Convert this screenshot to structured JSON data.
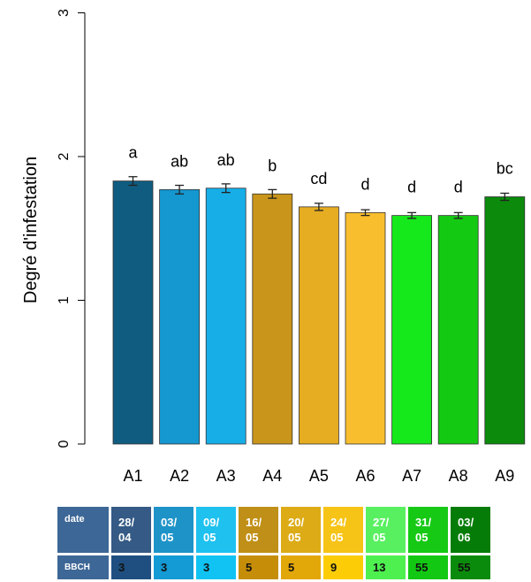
{
  "chart_data": {
    "type": "bar",
    "categories": [
      "A1",
      "A2",
      "A3",
      "A4",
      "A5",
      "A6",
      "A7",
      "A8",
      "A9"
    ],
    "values": [
      1.83,
      1.77,
      1.78,
      1.74,
      1.65,
      1.61,
      1.59,
      1.59,
      1.72
    ],
    "error": [
      0.03,
      0.03,
      0.03,
      0.03,
      0.025,
      0.02,
      0.02,
      0.02,
      0.025
    ],
    "letters": [
      "a",
      "ab",
      "ab",
      "b",
      "cd",
      "d",
      "d",
      "d",
      "bc"
    ],
    "colors": [
      "#0f5c80",
      "#1597cf",
      "#17aee8",
      "#c9951a",
      "#e6ad22",
      "#f9be2e",
      "#15e81b",
      "#14c912",
      "#0b8a0b"
    ],
    "ylabel": "Degré d'infestation",
    "xlabel": "",
    "ylim": [
      0,
      3
    ],
    "yticks": [
      "0",
      "1",
      "2",
      "3"
    ],
    "grid": false
  },
  "table": {
    "date_header": "date",
    "bbch_header": "BBCH",
    "dates": [
      "28/\n04",
      "03/\n05",
      "09/\n05",
      "16/\n05",
      "20/\n05",
      "24/\n05",
      "27/\n05",
      "31/\n05",
      "03/\n06"
    ],
    "bbch": [
      "3",
      "3",
      "3",
      "5",
      "5",
      "9",
      "13",
      "55",
      "55"
    ],
    "date_colors": [
      "#345a85",
      "#1e93c8",
      "#1fc1ef",
      "#c08f17",
      "#dcab16",
      "#f6c317",
      "#58f060",
      "#16c915",
      "#067c08"
    ],
    "bbch_colors": [
      "#1e4f80",
      "#149ad4",
      "#10c3f3",
      "#c68e08",
      "#e2a709",
      "#fccd07",
      "#4ef050",
      "#13c813",
      "#0b8b0b"
    ]
  }
}
